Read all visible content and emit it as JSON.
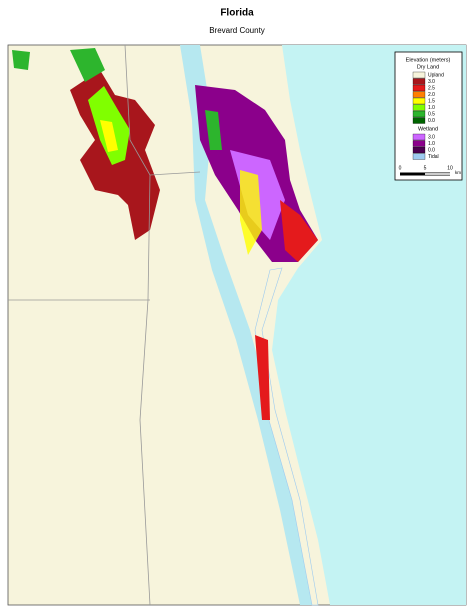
{
  "header": {
    "title": "Florida",
    "subtitle": "Brevard County"
  },
  "legend": {
    "title": "Elevation (meters)",
    "dry_land": {
      "title": "Dry Land",
      "items": [
        {
          "label": "Upland",
          "color": "#f7f4dc"
        },
        {
          "label": "3.0",
          "color": "#a8161c"
        },
        {
          "label": "2.5",
          "color": "#e41a1c"
        },
        {
          "label": "2.0",
          "color": "#ff7f00"
        },
        {
          "label": "1.5",
          "color": "#ffff00"
        },
        {
          "label": "1.0",
          "color": "#80ff00"
        },
        {
          "label": "0.5",
          "color": "#2db52d"
        },
        {
          "label": "0.0",
          "color": "#006400"
        }
      ]
    },
    "wetland": {
      "title": "Wetland",
      "items": [
        {
          "label": "3.0",
          "color": "#cc66ff"
        },
        {
          "label": "1.0",
          "color": "#8b008b"
        },
        {
          "label": "0.0",
          "color": "#4b0050"
        },
        {
          "label": "Tidal",
          "color": "#9ecbf0"
        }
      ]
    },
    "scale": {
      "labels": [
        "0",
        "5",
        "10"
      ],
      "unit": "km"
    }
  }
}
